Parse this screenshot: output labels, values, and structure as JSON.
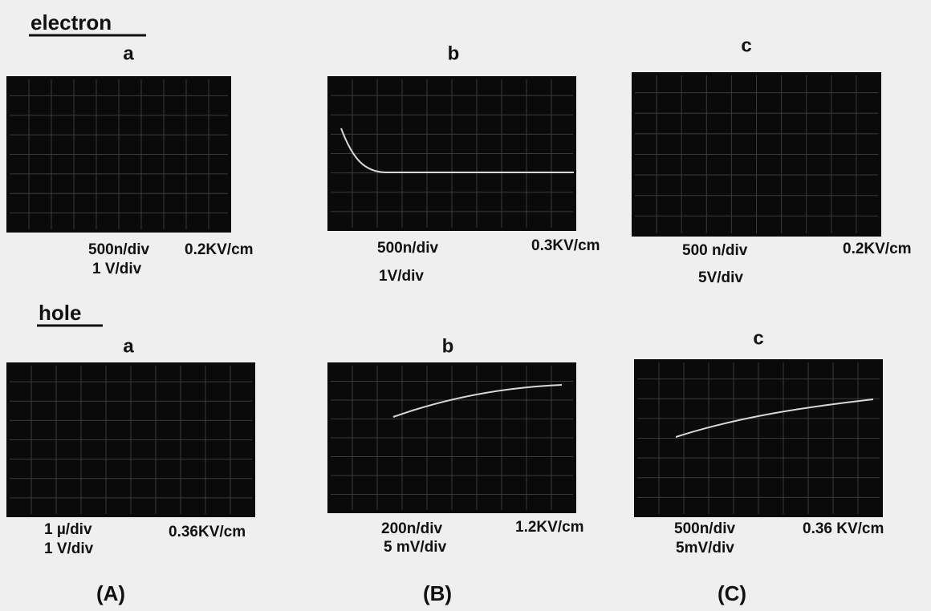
{
  "sections": [
    {
      "title": "electron",
      "panels": [
        {
          "letter": "a",
          "time_scale": "500n/div",
          "field": "0.2KV/cm",
          "voltage_scale": "1 V/div"
        },
        {
          "letter": "b",
          "time_scale": "500n/div",
          "field": "0.3KV/cm",
          "voltage_scale": "1V/div"
        },
        {
          "letter": "c",
          "time_scale": "500 n/div",
          "field": "0.2KV/cm",
          "voltage_scale": "5V/div"
        }
      ]
    },
    {
      "title": "hole",
      "panels": [
        {
          "letter": "a",
          "time_scale": "1 µ/div",
          "field": "0.36KV/cm",
          "voltage_scale": "1 V/div"
        },
        {
          "letter": "b",
          "time_scale": "200n/div",
          "field": "1.2KV/cm",
          "voltage_scale": "5 mV/div"
        },
        {
          "letter": "c",
          "time_scale": "500n/div",
          "field": "0.36 KV/cm",
          "voltage_scale": "5mV/div"
        }
      ]
    }
  ],
  "columns": [
    "(A)",
    "(B)",
    "(C)"
  ]
}
